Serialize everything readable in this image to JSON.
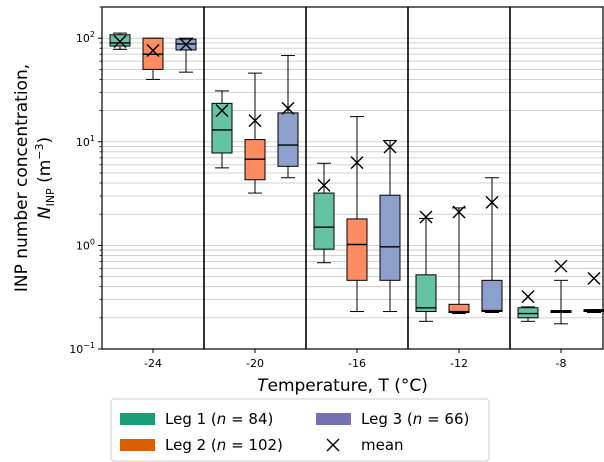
{
  "chart_data": {
    "type": "box",
    "xlabel": "Temperature, T (°C)",
    "ylabel": "INP number concentration, N_INP (m^-3)",
    "yscale": "log",
    "ylim": [
      0.1,
      200
    ],
    "y_ticks": [
      "10^-1",
      "10^0",
      "10^1",
      "10^2"
    ],
    "categories": [
      "-24",
      "-20",
      "-16",
      "-12",
      "-8"
    ],
    "grid": "horizontal minor",
    "legend_position": "bottom",
    "series": [
      {
        "name": "Leg 1 (n = 84)",
        "color": "#66c2a5",
        "legend_color": "#1b9e77",
        "boxes": [
          {
            "category": "-24",
            "whisker_low": 78,
            "q1": 84,
            "median": 90,
            "q3": 108,
            "whisker_high": 112,
            "mean": 93
          },
          {
            "category": "-20",
            "whisker_low": 5.6,
            "q1": 7.8,
            "median": 13,
            "q3": 23.5,
            "whisker_high": 31,
            "mean": 20
          },
          {
            "category": "-16",
            "whisker_low": 0.68,
            "q1": 0.92,
            "median": 1.5,
            "q3": 3.2,
            "whisker_high": 6.2,
            "mean": 3.8
          },
          {
            "category": "-12",
            "whisker_low": 0.185,
            "q1": 0.23,
            "median": 0.25,
            "q3": 0.52,
            "whisker_high": 1.82,
            "mean": 1.88
          },
          {
            "category": "-8",
            "whisker_low": 0.185,
            "q1": 0.2,
            "median": 0.22,
            "q3": 0.25,
            "whisker_high": 0.255,
            "mean": 0.32
          }
        ]
      },
      {
        "name": "Leg 2 (n = 102)",
        "color": "#fc8d62",
        "legend_color": "#d95f02",
        "boxes": [
          {
            "category": "-24",
            "whisker_low": 40,
            "q1": 50,
            "median": 70,
            "q3": 100,
            "whisker_high": 100,
            "mean": 76
          },
          {
            "category": "-20",
            "whisker_low": 3.2,
            "q1": 4.3,
            "median": 6.8,
            "q3": 10.5,
            "whisker_high": 46,
            "mean": 16
          },
          {
            "category": "-16",
            "whisker_low": 0.23,
            "q1": 0.46,
            "median": 1.02,
            "q3": 1.8,
            "whisker_high": 17.5,
            "mean": 6.3
          },
          {
            "category": "-12",
            "whisker_low": 0.22,
            "q1": 0.225,
            "median": 0.23,
            "q3": 0.27,
            "whisker_high": 2.3,
            "mean": 2.1
          },
          {
            "category": "-8",
            "whisker_low": 0.175,
            "q1": 0.225,
            "median": 0.23,
            "q3": 0.235,
            "whisker_high": 0.46,
            "mean": 0.63
          }
        ]
      },
      {
        "name": "Leg 3 (n = 66)",
        "color": "#8da0cb",
        "legend_color": "#7570b3",
        "boxes": [
          {
            "category": "-24",
            "whisker_low": 47,
            "q1": 77,
            "median": 88,
            "q3": 98,
            "whisker_high": 100,
            "mean": 87
          },
          {
            "category": "-20",
            "whisker_low": 4.5,
            "q1": 5.8,
            "median": 9.3,
            "q3": 19,
            "whisker_high": 68,
            "mean": 21
          },
          {
            "category": "-16",
            "whisker_low": 0.23,
            "q1": 0.46,
            "median": 0.97,
            "q3": 3.05,
            "whisker_high": 10.3,
            "mean": 8.9
          },
          {
            "category": "-12",
            "whisker_low": 0.225,
            "q1": 0.23,
            "median": 0.235,
            "q3": 0.46,
            "whisker_high": 4.5,
            "mean": 2.6
          },
          {
            "category": "-8",
            "whisker_low": 0.225,
            "q1": 0.23,
            "median": 0.235,
            "q3": 0.24,
            "whisker_high": 0.24,
            "mean": 0.48
          }
        ]
      }
    ],
    "mean_label": "mean",
    "mean_marker": "×"
  }
}
